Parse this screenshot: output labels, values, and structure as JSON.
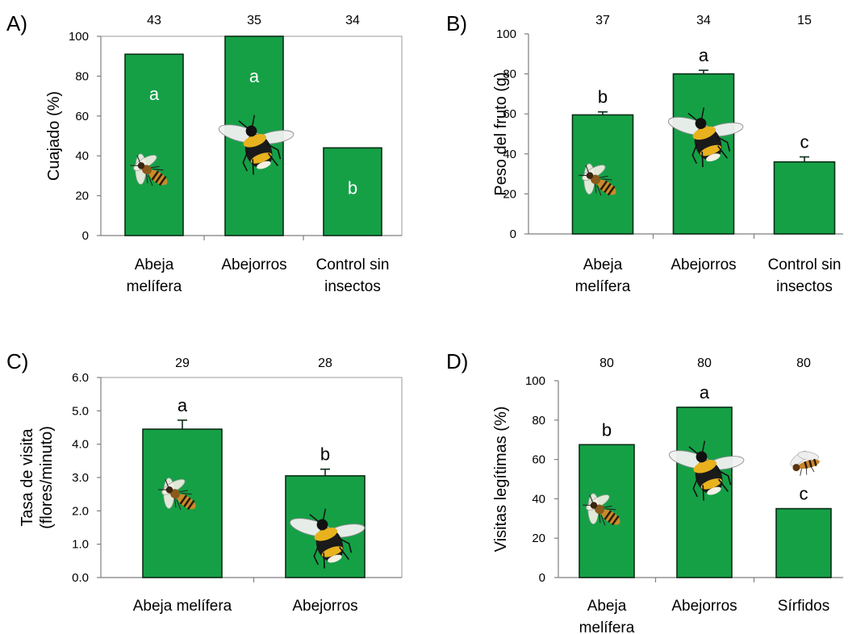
{
  "chart_data": [
    {
      "type": "bar",
      "panel": "A)",
      "ylabel": "Cuajado (%)",
      "ylim": [
        0,
        100
      ],
      "yticks": [
        "0",
        "20",
        "40",
        "60",
        "80",
        "100"
      ],
      "categories": [
        "Abeja melífera",
        "Abejorros",
        "Control sin insectos"
      ],
      "category_lines": [
        [
          "Abeja",
          "melífera"
        ],
        [
          "Abejorros"
        ],
        [
          "Control sin",
          "insectos"
        ]
      ],
      "values": [
        91,
        100,
        44
      ],
      "errors": [
        null,
        null,
        null
      ],
      "n": [
        "43",
        "35",
        "34"
      ],
      "letters": [
        "a",
        "a",
        "b"
      ],
      "letters_inside": true,
      "icons": [
        "honeybee-icon",
        "bumblebee-icon",
        null
      ],
      "frame": true
    },
    {
      "type": "bar",
      "panel": "B)",
      "ylabel": "Peso del fruto (g)",
      "ylim": [
        0,
        100
      ],
      "yticks": [
        "0",
        "20",
        "40",
        "60",
        "80",
        "100"
      ],
      "categories": [
        "Abeja melífera",
        "Abejorros",
        "Control sin insectos"
      ],
      "category_lines": [
        [
          "Abeja",
          "melífera"
        ],
        [
          "Abejorros"
        ],
        [
          "Control sin",
          "insectos"
        ]
      ],
      "values": [
        59.5,
        80,
        36
      ],
      "errors": [
        1.5,
        1.8,
        2.5
      ],
      "n": [
        "37",
        "34",
        "15"
      ],
      "letters": [
        "b",
        "a",
        "c"
      ],
      "letters_inside": false,
      "icons": [
        "honeybee-icon",
        "bumblebee-icon",
        null
      ],
      "frame": false
    },
    {
      "type": "bar",
      "panel": "C)",
      "ylabel": "Tasa de visita (flores/minuto)",
      "ylabel_lines": [
        "Tasa de visita",
        "(flores/minuto)"
      ],
      "ylim": [
        0,
        6
      ],
      "yticks": [
        "0.0",
        "1.0",
        "2.0",
        "3.0",
        "4.0",
        "5.0",
        "6.0"
      ],
      "categories": [
        "Abeja melífera",
        "Abejorros"
      ],
      "category_lines": [
        [
          "Abeja melífera"
        ],
        [
          "Abejorros"
        ]
      ],
      "values": [
        4.45,
        3.05
      ],
      "errors": [
        0.27,
        0.2
      ],
      "n": [
        "29",
        "28"
      ],
      "letters": [
        "a",
        "b"
      ],
      "letters_inside": false,
      "icons": [
        "honeybee-icon",
        "bumblebee-icon"
      ],
      "frame": true
    },
    {
      "type": "bar",
      "panel": "D)",
      "ylabel": "Visitas legítimas (%)",
      "ylim": [
        0,
        100
      ],
      "yticks": [
        "0",
        "20",
        "40",
        "60",
        "80",
        "100"
      ],
      "categories": [
        "Abeja melífera",
        "Abejorros",
        "Sírfidos"
      ],
      "category_lines": [
        [
          "Abeja",
          "melífera"
        ],
        [
          "Abejorros"
        ],
        [
          "Sírfidos"
        ]
      ],
      "values": [
        67.5,
        86.5,
        35
      ],
      "errors": [
        null,
        null,
        null
      ],
      "n": [
        "80",
        "80",
        "80"
      ],
      "letters": [
        "b",
        "a",
        "c"
      ],
      "letters_inside": false,
      "icons": [
        "honeybee-icon",
        "bumblebee-icon",
        "hoverfly-icon"
      ],
      "frame": false
    }
  ],
  "colors": {
    "bar": "#15a046",
    "bar_edge": "#0b2e16",
    "letter_inside": "#ffffff",
    "letter_outside": "#000000"
  }
}
